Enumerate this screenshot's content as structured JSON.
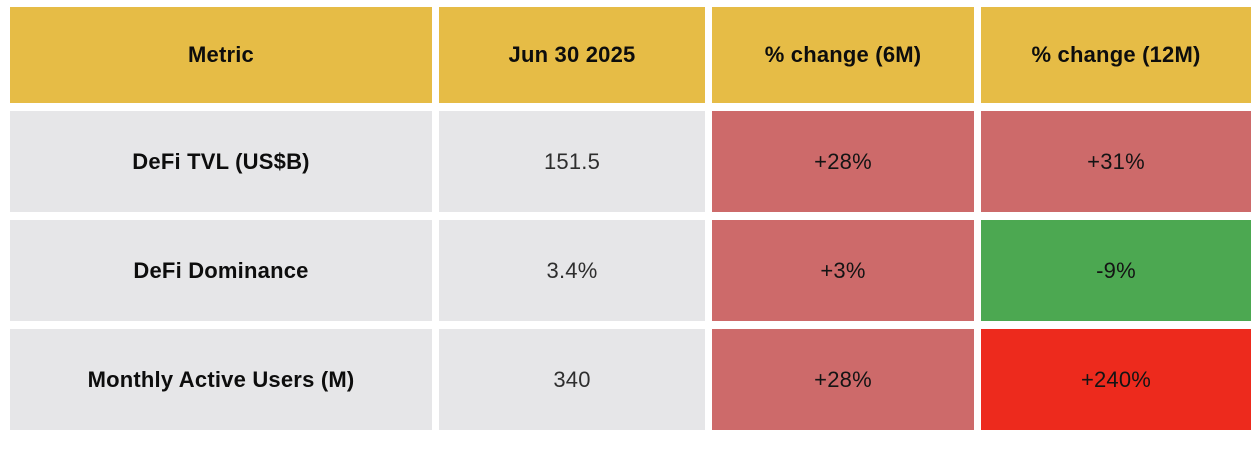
{
  "colors": {
    "header_bg": "#E6BC46",
    "cell_bg": "#E6E6E8",
    "muted_red": "#CD6A6A",
    "green": "#4CA851",
    "bright_red": "#ED2A1D",
    "gutter": "#FFFFFF",
    "text": "#0D0D0D"
  },
  "chart_data": {
    "type": "table",
    "title": "",
    "columns": [
      "Metric",
      "Jun 30 2025",
      "% change (6M)",
      "% change (12M)"
    ],
    "rows": [
      {
        "metric": "DeFi TVL (US$B)",
        "value": "151.5",
        "change_6m": "+28%",
        "change_6m_tone": "muted-red",
        "change_12m": "+31%",
        "change_12m_tone": "muted-red"
      },
      {
        "metric": "DeFi Dominance",
        "value": "3.4%",
        "change_6m": "+3%",
        "change_6m_tone": "muted-red",
        "change_12m": "-9%",
        "change_12m_tone": "green"
      },
      {
        "metric": "Monthly Active Users (M)",
        "value": "340",
        "change_6m": "+28%",
        "change_6m_tone": "muted-red",
        "change_12m": "+240%",
        "change_12m_tone": "bright-red"
      }
    ],
    "tone_colors": {
      "muted-red": "#CD6A6A",
      "green": "#4CA851",
      "bright-red": "#ED2A1D"
    }
  }
}
